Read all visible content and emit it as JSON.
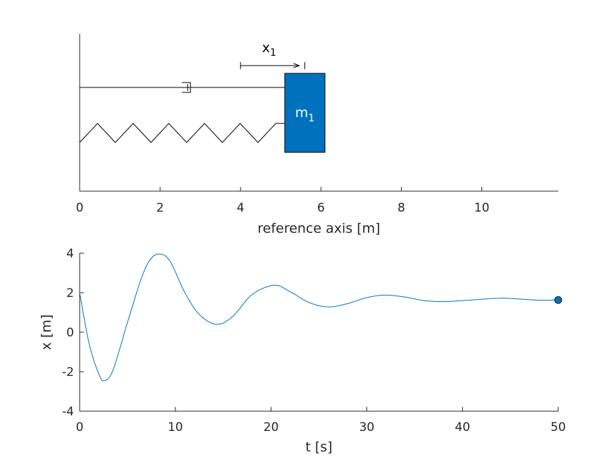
{
  "chart_data": [
    {
      "type": "diagram",
      "xlabel": "reference axis [m]",
      "xlim": [
        0,
        11.9
      ],
      "xticks": [
        0,
        2,
        4,
        6,
        8,
        10
      ],
      "mass": {
        "label_main": "m",
        "label_sub": "1",
        "position_m": 5.1,
        "width_m": 1.0,
        "color": "#0072BD"
      },
      "displacement_label": {
        "main": "x",
        "sub": "1"
      },
      "displacement_arrow_m": [
        4.0,
        5.6
      ],
      "elements": [
        "damper",
        "spring"
      ]
    },
    {
      "type": "line",
      "xlabel": "t [s]",
      "ylabel": "x [m]",
      "xlim": [
        0,
        50
      ],
      "ylim": [
        -4,
        4
      ],
      "xticks": [
        0,
        10,
        20,
        30,
        40,
        50
      ],
      "yticks": [
        -4,
        -2,
        0,
        2,
        4
      ],
      "ytick_labels": [
        "-4",
        "-2",
        "0",
        "2",
        "4"
      ],
      "line_color": "#0072BD",
      "series": [
        {
          "x": [
            0,
            1,
            2,
            2.6,
            3.5,
            5,
            6.5,
            7.5,
            8.5,
            9.5,
            11,
            12.5,
            14.3,
            16,
            18,
            20.3,
            22,
            24,
            26,
            28,
            30,
            31.9,
            34,
            36,
            37.9,
            40,
            43.8,
            46,
            48,
            50
          ],
          "y": [
            2.0,
            -0.6,
            -2.1,
            -2.45,
            -1.9,
            0.5,
            2.8,
            3.75,
            3.95,
            3.55,
            2.0,
            0.9,
            0.4,
            0.8,
            1.9,
            2.38,
            2.05,
            1.5,
            1.28,
            1.45,
            1.75,
            1.88,
            1.78,
            1.6,
            1.55,
            1.6,
            1.72,
            1.68,
            1.62,
            1.63
          ]
        }
      ],
      "marker": {
        "x": 50,
        "y": 1.63
      }
    }
  ]
}
